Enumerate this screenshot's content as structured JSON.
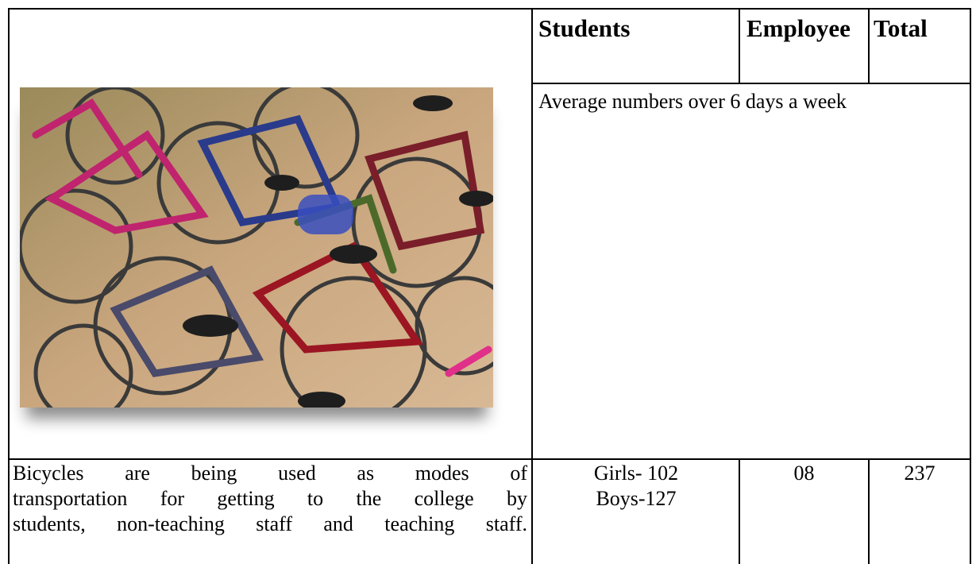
{
  "table": {
    "header": [
      "Students",
      "Employee",
      "Total"
    ],
    "note": "Average numbers over 6 days a week",
    "description": [
      "Bicycles are being used as modes of",
      "transportation for getting to the college by",
      "students, non-teaching staff and teaching staff."
    ],
    "students": [
      "Girls- 102",
      "Boys-127"
    ],
    "employee": "08",
    "total": "237"
  }
}
